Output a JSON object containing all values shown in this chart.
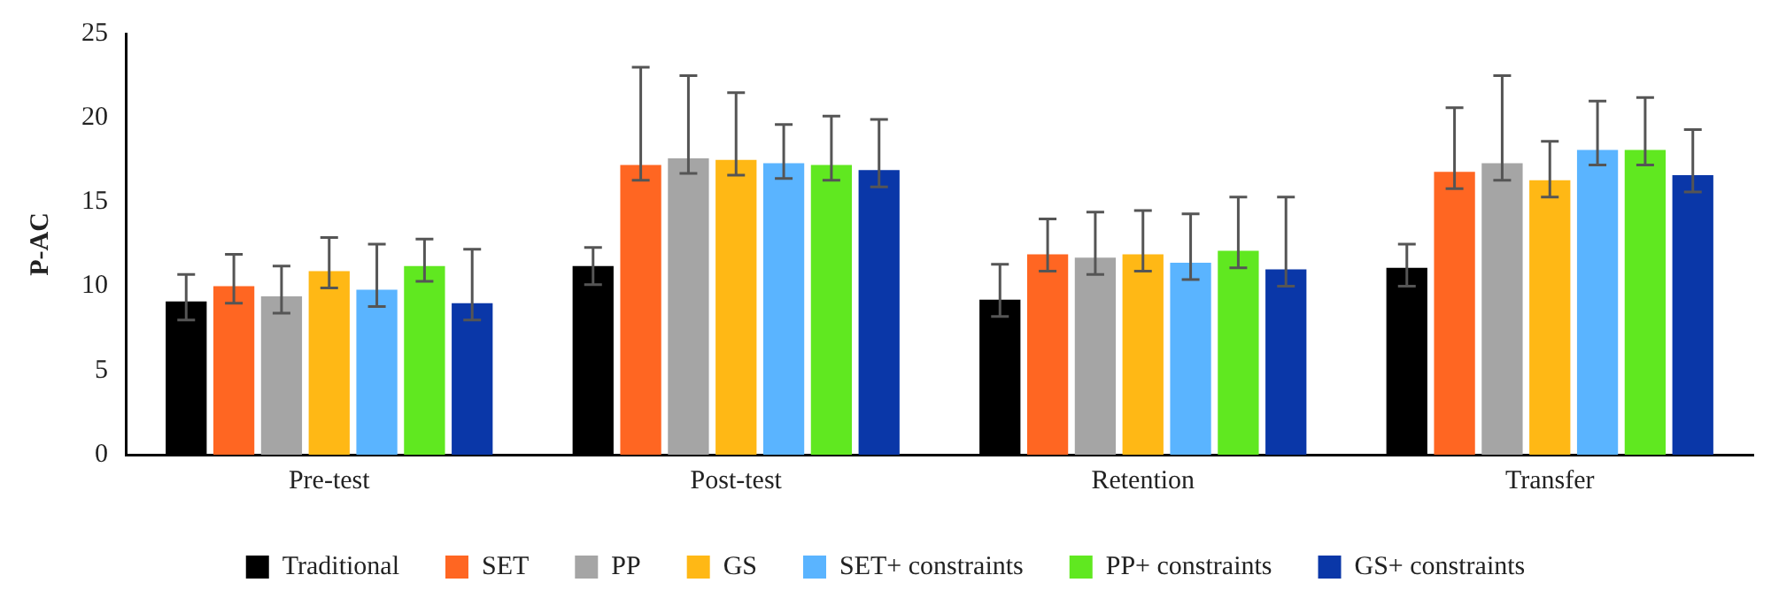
{
  "chart_data": {
    "type": "bar",
    "ylabel": "P-AC",
    "categories": [
      "Pre-test",
      "Post-test",
      "Retention",
      "Transfer"
    ],
    "series": [
      {
        "name": "Traditional",
        "color": "#000000",
        "values": [
          9.1,
          11.2,
          9.2,
          11.1
        ],
        "errors": [
          [
            8.0,
            10.7
          ],
          [
            10.1,
            12.3
          ],
          [
            8.2,
            11.3
          ],
          [
            10.0,
            12.5
          ]
        ]
      },
      {
        "name": "SET",
        "color": "#ff6622",
        "values": [
          10.0,
          17.2,
          11.9,
          16.8
        ],
        "errors": [
          [
            9.0,
            11.9
          ],
          [
            16.3,
            23.0
          ],
          [
            10.9,
            14.0
          ],
          [
            15.8,
            20.6
          ]
        ]
      },
      {
        "name": "PP",
        "color": "#a5a5a5",
        "values": [
          9.4,
          17.6,
          11.7,
          17.3
        ],
        "errors": [
          [
            8.4,
            11.2
          ],
          [
            16.7,
            22.5
          ],
          [
            10.7,
            14.4
          ],
          [
            16.3,
            22.5
          ]
        ]
      },
      {
        "name": "GS",
        "color": "#ffb815",
        "values": [
          10.9,
          17.5,
          11.9,
          16.3
        ],
        "errors": [
          [
            9.9,
            12.9
          ],
          [
            16.6,
            21.5
          ],
          [
            10.9,
            14.5
          ],
          [
            15.3,
            18.6
          ]
        ]
      },
      {
        "name": "SET+ constraints",
        "color": "#5ab4ff",
        "values": [
          9.8,
          17.3,
          11.4,
          18.1
        ],
        "errors": [
          [
            8.8,
            12.5
          ],
          [
            16.4,
            19.6
          ],
          [
            10.4,
            14.3
          ],
          [
            17.2,
            21.0
          ]
        ]
      },
      {
        "name": "PP+ constraints",
        "color": "#60e820",
        "values": [
          11.2,
          17.2,
          12.1,
          18.1
        ],
        "errors": [
          [
            10.3,
            12.8
          ],
          [
            16.3,
            20.1
          ],
          [
            11.1,
            15.3
          ],
          [
            17.2,
            21.2
          ]
        ]
      },
      {
        "name": "GS+ constraints",
        "color": "#0a37a8",
        "values": [
          9.0,
          16.9,
          11.0,
          16.6
        ],
        "errors": [
          [
            8.0,
            12.2
          ],
          [
            15.9,
            19.9
          ],
          [
            10.0,
            15.3
          ],
          [
            15.6,
            19.3
          ]
        ]
      }
    ],
    "ylim": [
      0,
      25
    ],
    "yticks": [
      0,
      5,
      10,
      15,
      20,
      25
    ],
    "grid": false,
    "legend": "bottom"
  }
}
